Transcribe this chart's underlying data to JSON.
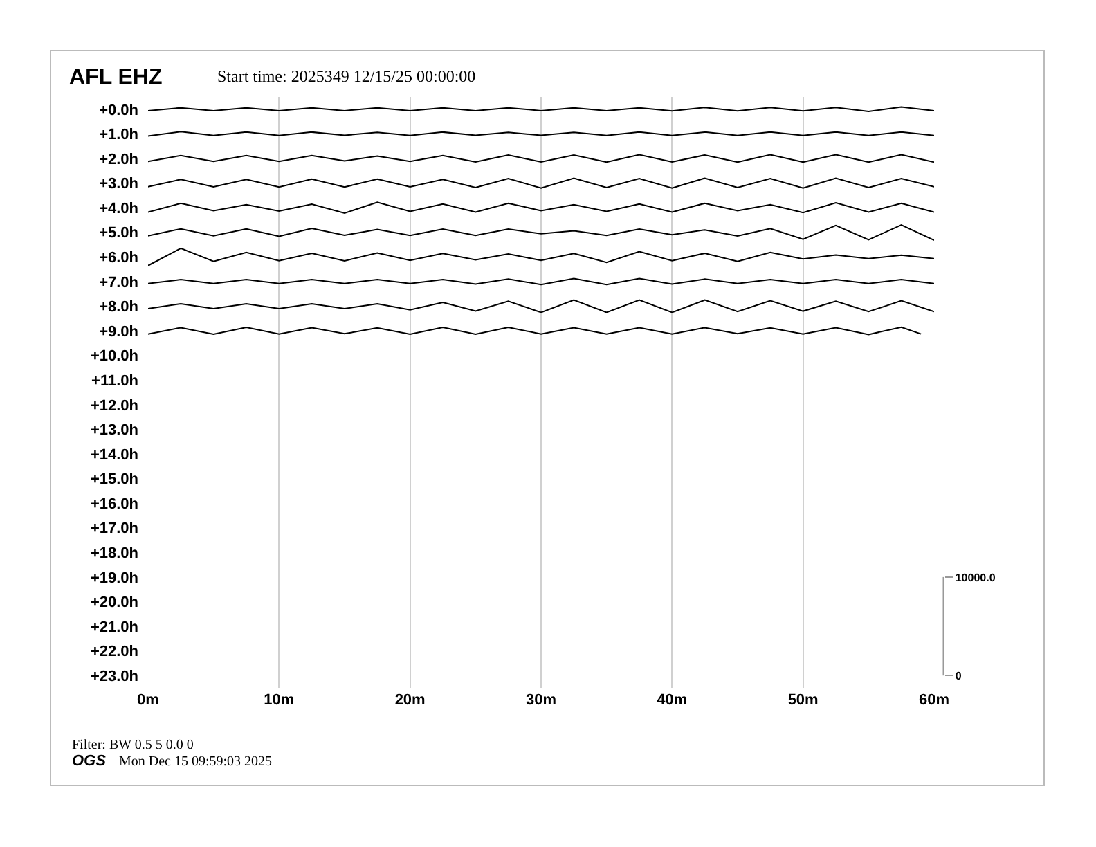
{
  "chart_data": {
    "type": "line",
    "title": "AFL EHZ",
    "subtitle": "Start time: 2025349 12/15/25 00:00:00",
    "annotations": [
      "Filter: BW 0.5 5 0.0 0",
      "OGS",
      "Mon Dec 15 09:59:03 2025"
    ],
    "x": [
      0,
      2.5,
      5,
      7.5,
      10,
      12.5,
      15,
      17.5,
      20,
      22.5,
      25,
      27.5,
      30,
      32.5,
      35,
      37.5,
      40,
      42.5,
      45,
      47.5,
      50,
      52.5,
      55,
      57.5,
      60
    ],
    "series": [
      {
        "color": "#000000",
        "values": [
          0.06,
          -0.06,
          0.06,
          -0.06,
          0.06,
          -0.06,
          0.06,
          -0.06,
          0.06,
          -0.06,
          0.06,
          -0.06,
          0.06,
          -0.06,
          0.06,
          -0.06,
          0.07,
          -0.07,
          0.07,
          -0.07,
          0.07,
          -0.07,
          0.09,
          -0.09,
          0.06
        ]
      },
      {
        "color": "#000000",
        "values": [
          1.09,
          0.91,
          1.07,
          0.93,
          1.07,
          0.93,
          1.06,
          0.94,
          1.07,
          0.93,
          1.06,
          0.94,
          1.06,
          0.94,
          1.07,
          0.93,
          1.07,
          0.93,
          1.07,
          0.93,
          1.07,
          0.93,
          1.07,
          0.93,
          1.07
        ]
      },
      {
        "color": "#000000",
        "values": [
          2.12,
          1.88,
          2.12,
          1.88,
          2.12,
          1.88,
          2.1,
          1.9,
          2.12,
          1.88,
          2.14,
          1.86,
          2.14,
          1.86,
          2.15,
          1.85,
          2.14,
          1.86,
          2.15,
          1.85,
          2.15,
          1.85,
          2.15,
          1.85,
          2.15
        ]
      },
      {
        "color": "#000000",
        "values": [
          3.15,
          2.85,
          3.15,
          2.85,
          3.16,
          2.84,
          3.16,
          2.84,
          3.15,
          2.85,
          3.18,
          2.82,
          3.2,
          2.8,
          3.18,
          2.82,
          3.2,
          2.8,
          3.18,
          2.82,
          3.2,
          2.8,
          3.18,
          2.82,
          3.15
        ]
      },
      {
        "color": "#000000",
        "values": [
          4.18,
          3.82,
          4.12,
          3.88,
          4.14,
          3.86,
          4.22,
          3.78,
          4.15,
          3.85,
          4.18,
          3.82,
          4.12,
          3.88,
          4.15,
          3.85,
          4.18,
          3.82,
          4.12,
          3.88,
          4.2,
          3.8,
          4.18,
          3.82,
          4.18
        ]
      },
      {
        "color": "#000000",
        "values": [
          5.14,
          4.86,
          5.14,
          4.86,
          5.16,
          4.84,
          5.12,
          4.88,
          5.13,
          4.87,
          5.13,
          4.87,
          5.06,
          4.94,
          5.13,
          4.87,
          5.1,
          4.9,
          5.15,
          4.85,
          5.28,
          4.72,
          5.3,
          4.7,
          5.32
        ]
      },
      {
        "color": "#000000",
        "values": [
          6.35,
          5.65,
          6.18,
          5.82,
          6.15,
          5.85,
          6.16,
          5.84,
          6.14,
          5.86,
          6.12,
          5.88,
          6.14,
          5.86,
          6.22,
          5.78,
          6.15,
          5.85,
          6.18,
          5.82,
          6.08,
          5.92,
          6.07,
          5.93,
          6.07
        ]
      },
      {
        "color": "#000000",
        "values": [
          7.08,
          6.92,
          7.08,
          6.92,
          7.08,
          6.92,
          7.08,
          6.92,
          7.08,
          6.92,
          7.1,
          6.9,
          7.12,
          6.88,
          7.12,
          6.88,
          7.1,
          6.9,
          7.08,
          6.92,
          7.08,
          6.92,
          7.08,
          6.92,
          7.08
        ]
      },
      {
        "color": "#000000",
        "values": [
          8.1,
          7.9,
          8.1,
          7.9,
          8.1,
          7.9,
          8.1,
          7.9,
          8.15,
          7.85,
          8.2,
          7.8,
          8.25,
          7.75,
          8.25,
          7.75,
          8.25,
          7.75,
          8.22,
          7.78,
          8.2,
          7.8,
          8.22,
          7.78,
          8.22
        ]
      },
      {
        "color": "#000000",
        "x": [
          0,
          2.5,
          5,
          7.5,
          10,
          12.5,
          15,
          17.5,
          20,
          22.5,
          25,
          27.5,
          30,
          32.5,
          35,
          37.5,
          40,
          42.5,
          45,
          47.5,
          50,
          52.5,
          55,
          57.5,
          59
        ],
        "values": [
          9.13,
          8.87,
          9.14,
          8.86,
          9.13,
          8.87,
          9.12,
          8.88,
          9.14,
          8.86,
          9.14,
          8.86,
          9.13,
          8.87,
          9.13,
          8.87,
          9.13,
          8.87,
          9.12,
          8.88,
          9.13,
          8.87,
          9.15,
          8.85,
          9.13
        ]
      }
    ],
    "xlim": [
      0,
      60
    ],
    "xticks": [
      {
        "value": 0,
        "label": "0m"
      },
      {
        "value": 10,
        "label": "10m"
      },
      {
        "value": 20,
        "label": "20m"
      },
      {
        "value": 30,
        "label": "30m"
      },
      {
        "value": 40,
        "label": "40m"
      },
      {
        "value": 50,
        "label": "50m"
      },
      {
        "value": 60,
        "label": "60m"
      }
    ],
    "ylim": [
      23.5,
      -0.5
    ],
    "yticks": [
      {
        "value": 0,
        "label": "+0.0h"
      },
      {
        "value": 1,
        "label": "+1.0h"
      },
      {
        "value": 2,
        "label": "+2.0h"
      },
      {
        "value": 3,
        "label": "+3.0h"
      },
      {
        "value": 4,
        "label": "+4.0h"
      },
      {
        "value": 5,
        "label": "+5.0h"
      },
      {
        "value": 6,
        "label": "+6.0h"
      },
      {
        "value": 7,
        "label": "+7.0h"
      },
      {
        "value": 8,
        "label": "+8.0h"
      },
      {
        "value": 9,
        "label": "+9.0h"
      },
      {
        "value": 10,
        "label": "+10.0h"
      },
      {
        "value": 11,
        "label": "+11.0h"
      },
      {
        "value": 12,
        "label": "+12.0h"
      },
      {
        "value": 13,
        "label": "+13.0h"
      },
      {
        "value": 14,
        "label": "+14.0h"
      },
      {
        "value": 15,
        "label": "+15.0h"
      },
      {
        "value": 16,
        "label": "+16.0h"
      },
      {
        "value": 17,
        "label": "+17.0h"
      },
      {
        "value": 18,
        "label": "+18.0h"
      },
      {
        "value": 19,
        "label": "+19.0h"
      },
      {
        "value": 20,
        "label": "+20.0h"
      },
      {
        "value": 21,
        "label": "+21.0h"
      },
      {
        "value": 22,
        "label": "+22.0h"
      },
      {
        "value": 23,
        "label": "+23.0h"
      }
    ],
    "y2lim": [
      -1250,
      58750
    ],
    "y2ticks": [
      0,
      {
        "value": 10000,
        "label": "10000.0"
      }
    ],
    "grid": "x",
    "marker": "none",
    "line_style": "solid"
  }
}
